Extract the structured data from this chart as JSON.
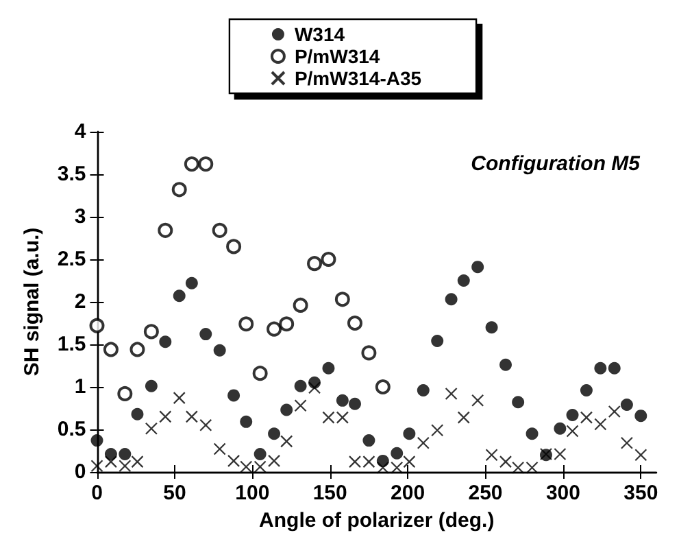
{
  "chart_data": {
    "type": "scatter",
    "xlabel": "Angle of polarizer (deg.)",
    "ylabel": "SH signal (a.u.)",
    "annotations": [
      "Configuration M5"
    ],
    "x": [
      0,
      9,
      18,
      26,
      35,
      44,
      53,
      61,
      70,
      79,
      88,
      96,
      105,
      114,
      122,
      131,
      140,
      149,
      158,
      166,
      175,
      184,
      193,
      201,
      210,
      219,
      228,
      236,
      245,
      254,
      263,
      271,
      280,
      289,
      298,
      306,
      315,
      324,
      333,
      341,
      350
    ],
    "series": [
      {
        "name": "W314",
        "color": "#000000",
        "marker": "circle",
        "values": [
          0.37,
          0.21,
          0.21,
          0.68,
          1.01,
          1.53,
          2.07,
          2.22,
          1.62,
          1.43,
          0.9,
          0.59,
          0.21,
          0.45,
          0.73,
          1.01,
          1.05,
          1.22,
          0.84,
          0.8,
          0.37,
          0.13,
          0.22,
          0.45,
          0.96,
          1.54,
          2.03,
          2.25,
          2.41,
          1.7,
          1.26,
          0.82,
          0.45,
          0.2,
          0.51,
          0.67,
          0.96,
          1.22,
          1.22,
          0.79,
          0.66
        ]
      },
      {
        "name": "P/mW314",
        "color": "#000000",
        "marker": "circle-open",
        "x": [
          0,
          9,
          18,
          26,
          35,
          44,
          53,
          61,
          70,
          79,
          88,
          96,
          105,
          114,
          122,
          131,
          140,
          149,
          158,
          166,
          175,
          184
        ],
        "values": [
          1.72,
          1.44,
          0.92,
          1.44,
          1.65,
          2.84,
          3.32,
          3.62,
          3.62,
          2.84,
          2.65,
          1.74,
          1.16,
          1.68,
          1.74,
          1.96,
          2.45,
          2.5,
          2.03,
          1.75,
          1.4,
          1.0
        ]
      },
      {
        "name": "P/mW314-A35",
        "color": "#000000",
        "marker": "cross",
        "values": [
          0.07,
          0.12,
          0.07,
          0.12,
          0.51,
          0.65,
          0.87,
          0.65,
          0.55,
          0.27,
          0.13,
          0.06,
          0.06,
          0.13,
          0.36,
          0.78,
          0.99,
          0.64,
          0.64,
          0.12,
          0.12,
          0.05,
          0.05,
          0.12,
          0.34,
          0.49,
          0.92,
          0.64,
          0.84,
          0.2,
          0.12,
          0.05,
          0.05,
          0.21,
          0.21,
          0.48,
          0.64,
          0.56,
          0.71,
          0.34,
          0.2
        ]
      }
    ],
    "xlim": [
      0,
      360
    ],
    "xticks": [
      0,
      50,
      100,
      150,
      200,
      250,
      300,
      350
    ],
    "ylim": [
      0,
      4
    ],
    "yticks": [
      0,
      0.5,
      1,
      1.5,
      2,
      2.5,
      3,
      3.5,
      4
    ],
    "grid": false,
    "legend": "top"
  }
}
